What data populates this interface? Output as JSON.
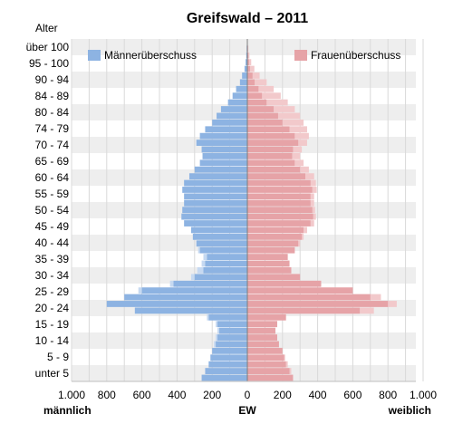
{
  "chart_data": {
    "type": "bar",
    "orientation": "horizontal",
    "subtype": "population-pyramid",
    "title": "Greifswald – 2011",
    "y_axis_title": "Alter",
    "x_unit_label": "EW",
    "left_label": "männlich",
    "right_label": "weiblich",
    "x_tick_labels": [
      "1.000",
      "800",
      "600",
      "400",
      "200",
      "0",
      "200",
      "400",
      "600",
      "800",
      "1.000"
    ],
    "xlim": [
      -1000,
      1000
    ],
    "y_tick_labels": [
      "über 100",
      "95 - 100",
      "90 - 94",
      "84 - 89",
      "80 - 84",
      "74 - 79",
      "70 - 74",
      "65 - 69",
      "60 - 64",
      "55 - 59",
      "50 - 54",
      "45 - 49",
      "40 - 44",
      "35 - 39",
      "30 - 34",
      "25 - 29",
      "20 - 24",
      "15 - 19",
      "10 - 14",
      "5 - 9",
      "unter 5"
    ],
    "legend": [
      "Männerüberschuss",
      "Frauenüberschuss"
    ],
    "legend_placement": "top",
    "grid": true,
    "colors": {
      "male": "#8db3e2",
      "male_surplus": "#c6d9f1",
      "female": "#e6a3a7",
      "female_surplus": "#f2c9cb",
      "band": "#eeeeee",
      "grid": "#d9d9d9"
    },
    "ages": [
      100,
      98,
      96,
      94,
      92,
      90,
      88,
      86,
      84,
      82,
      80,
      78,
      76,
      74,
      72,
      70,
      68,
      66,
      64,
      62,
      60,
      58,
      56,
      54,
      52,
      50,
      48,
      46,
      44,
      42,
      40,
      38,
      36,
      34,
      32,
      30,
      28,
      26,
      24,
      22,
      20,
      18,
      16,
      14,
      12,
      10,
      8,
      6,
      4,
      2,
      0
    ],
    "series": [
      {
        "name": "männlich",
        "values": [
          2,
          4,
          6,
          10,
          16,
          30,
          42,
          64,
          84,
          110,
          150,
          175,
          200,
          240,
          270,
          290,
          260,
          255,
          270,
          300,
          330,
          360,
          370,
          360,
          360,
          370,
          375,
          360,
          320,
          310,
          290,
          280,
          250,
          260,
          285,
          320,
          440,
          620,
          700,
          800,
          640,
          230,
          180,
          170,
          180,
          190,
          200,
          210,
          220,
          240,
          260
        ]
      },
      {
        "name": "weiblich",
        "values": [
          2,
          6,
          12,
          22,
          40,
          70,
          110,
          150,
          190,
          230,
          270,
          300,
          320,
          340,
          350,
          340,
          310,
          300,
          320,
          350,
          380,
          390,
          395,
          380,
          380,
          385,
          390,
          380,
          340,
          320,
          300,
          270,
          230,
          240,
          250,
          300,
          420,
          600,
          760,
          850,
          720,
          220,
          170,
          160,
          170,
          180,
          200,
          215,
          230,
          250,
          260
        ]
      }
    ]
  }
}
